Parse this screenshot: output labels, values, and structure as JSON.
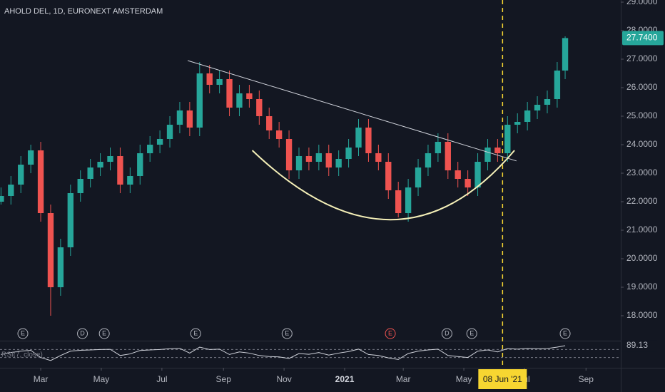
{
  "chart_data": {
    "type": "candlestick",
    "title": "AHOLD DEL, 1D, EURONEXT AMSTERDAM",
    "up_color": "#26a69a",
    "down_color": "#ef5350",
    "x": [
      20,
      30,
      40,
      50,
      60,
      70,
      80,
      90,
      100,
      110,
      120,
      130,
      140,
      150,
      160,
      170,
      180,
      190,
      200,
      210,
      220,
      230,
      240,
      250,
      260,
      270,
      280,
      290,
      300,
      310,
      320,
      330,
      340,
      350,
      360,
      370,
      380,
      390,
      400,
      410,
      420,
      430,
      440,
      450,
      460,
      470,
      480,
      490,
      500,
      510,
      520,
      530,
      540,
      550,
      560,
      570,
      580,
      588
    ],
    "open": [
      22.0,
      22.2,
      22.6,
      23.3,
      23.8,
      21.6,
      19.0,
      20.4,
      22.3,
      22.8,
      23.2,
      23.4,
      23.6,
      22.6,
      22.9,
      23.7,
      24.0,
      24.2,
      24.7,
      25.2,
      24.6,
      26.5,
      26.1,
      26.3,
      25.3,
      25.8,
      25.6,
      25.0,
      24.5,
      24.2,
      23.1,
      23.6,
      23.4,
      23.7,
      23.2,
      23.5,
      23.9,
      24.6,
      23.7,
      23.4,
      22.4,
      21.6,
      22.5,
      23.2,
      23.7,
      24.1,
      23.1,
      22.8,
      22.5,
      23.4,
      23.9,
      23.7,
      24.7,
      24.8,
      25.2,
      25.4,
      25.6,
      26.6
    ],
    "high": [
      22.5,
      22.9,
      23.6,
      24.0,
      24.1,
      21.9,
      20.7,
      22.6,
      23.1,
      23.5,
      23.7,
      23.9,
      23.9,
      23.2,
      24.0,
      24.3,
      24.5,
      25.0,
      25.5,
      25.5,
      26.9,
      26.8,
      26.6,
      26.6,
      26.1,
      26.1,
      25.9,
      25.3,
      24.8,
      24.5,
      23.9,
      23.9,
      24.0,
      24.0,
      23.8,
      24.2,
      24.9,
      24.9,
      24.0,
      23.7,
      22.7,
      22.8,
      23.5,
      24.0,
      24.4,
      24.4,
      23.4,
      23.1,
      23.7,
      24.2,
      24.2,
      25.0,
      25.1,
      25.5,
      25.7,
      25.9,
      26.9,
      27.8
    ],
    "low": [
      21.9,
      21.9,
      22.3,
      23.0,
      21.3,
      18.0,
      18.7,
      20.1,
      22.0,
      22.5,
      22.9,
      23.1,
      22.3,
      22.3,
      22.6,
      23.4,
      23.7,
      23.9,
      24.4,
      24.3,
      24.3,
      25.8,
      25.8,
      25.0,
      25.0,
      25.3,
      24.7,
      24.2,
      23.9,
      22.8,
      22.8,
      23.1,
      23.1,
      22.9,
      22.9,
      23.2,
      23.6,
      23.4,
      23.1,
      22.1,
      21.45,
      21.3,
      22.2,
      22.9,
      23.4,
      22.8,
      22.5,
      22.2,
      22.2,
      23.1,
      23.4,
      23.4,
      24.4,
      24.5,
      24.9,
      25.1,
      25.3,
      26.3
    ],
    "close": [
      22.2,
      22.6,
      23.3,
      23.8,
      21.6,
      19.0,
      20.4,
      22.3,
      22.8,
      23.2,
      23.4,
      23.6,
      22.6,
      22.9,
      23.7,
      24.0,
      24.2,
      24.7,
      25.2,
      24.6,
      26.5,
      26.1,
      26.3,
      25.3,
      25.8,
      25.6,
      25.0,
      24.5,
      24.2,
      23.1,
      23.6,
      23.4,
      23.7,
      23.2,
      23.5,
      23.9,
      24.6,
      23.7,
      23.4,
      22.4,
      21.6,
      22.5,
      23.2,
      23.7,
      24.1,
      23.1,
      22.8,
      22.5,
      23.4,
      23.9,
      23.7,
      24.7,
      24.8,
      25.2,
      25.4,
      25.6,
      26.6,
      27.74
    ],
    "last_price": {
      "value": 27.74,
      "label": "27.7400"
    },
    "xlim": [
      19,
      644
    ],
    "xticks": [
      {
        "value": 60,
        "label": "Mar"
      },
      {
        "value": 121,
        "label": "May"
      },
      {
        "value": 182,
        "label": "Jul"
      },
      {
        "value": 244,
        "label": "Sep"
      },
      {
        "value": 305,
        "label": "Nov"
      },
      {
        "value": 366,
        "label": "2021"
      },
      {
        "value": 425,
        "label": "Mar"
      },
      {
        "value": 486,
        "label": "May"
      },
      {
        "value": 547,
        "label": "Jul"
      },
      {
        "value": 609,
        "label": "Sep"
      }
    ],
    "ylim": [
      17.7,
      29.075
    ],
    "yticks": [
      {
        "value": 18,
        "label": "18.0000"
      },
      {
        "value": 19,
        "label": "19.0000"
      },
      {
        "value": 20,
        "label": "20.0000"
      },
      {
        "value": 21,
        "label": "21.0000"
      },
      {
        "value": 22,
        "label": "22.0000"
      },
      {
        "value": 23,
        "label": "23.0000"
      },
      {
        "value": 24,
        "label": "24.0000"
      },
      {
        "value": 25,
        "label": "25.0000"
      },
      {
        "value": 26,
        "label": "26.0000"
      },
      {
        "value": 27,
        "label": "27.0000"
      },
      {
        "value": 28,
        "label": "28.0000"
      },
      {
        "value": 29,
        "label": "29.0000"
      }
    ],
    "trendline": {
      "x": [
        208,
        539
      ],
      "y": [
        26.95,
        23.43
      ],
      "color": "#d1d4dc"
    },
    "cup": {
      "x": [
        273,
        412,
        537
      ],
      "y": [
        23.8,
        21.37,
        23.8
      ],
      "color": "#f5f0b8"
    },
    "crosshair": {
      "x": 525,
      "label": "08 Jun '21",
      "color": "#f7d631"
    },
    "events": [
      {
        "x": 42,
        "label": "E"
      },
      {
        "x": 102,
        "label": "D"
      },
      {
        "x": 124,
        "label": "E"
      },
      {
        "x": 216,
        "label": "E"
      },
      {
        "x": 308,
        "label": "E"
      },
      {
        "x": 412,
        "label": "E",
        "color": "#ef5350"
      },
      {
        "x": 469,
        "label": "D"
      },
      {
        "x": 494,
        "label": "E"
      },
      {
        "x": 588,
        "label": "E"
      }
    ],
    "rsi": {
      "label": "RSI(7, close)",
      "color": "#d1d4dc",
      "ylim": [
        0,
        100
      ],
      "levels": [
        70,
        30
      ],
      "values": [
        45,
        55,
        62,
        66,
        30,
        15,
        40,
        62,
        66,
        68,
        70,
        71,
        40,
        48,
        65,
        68,
        70,
        74,
        76,
        52,
        82,
        70,
        72,
        45,
        58,
        52,
        40,
        35,
        33,
        25,
        50,
        46,
        55,
        42,
        52,
        60,
        72,
        45,
        40,
        28,
        20,
        50,
        62,
        68,
        72,
        40,
        35,
        30,
        62,
        68,
        58,
        75,
        72,
        76,
        74,
        75,
        82,
        89.13
      ]
    }
  }
}
